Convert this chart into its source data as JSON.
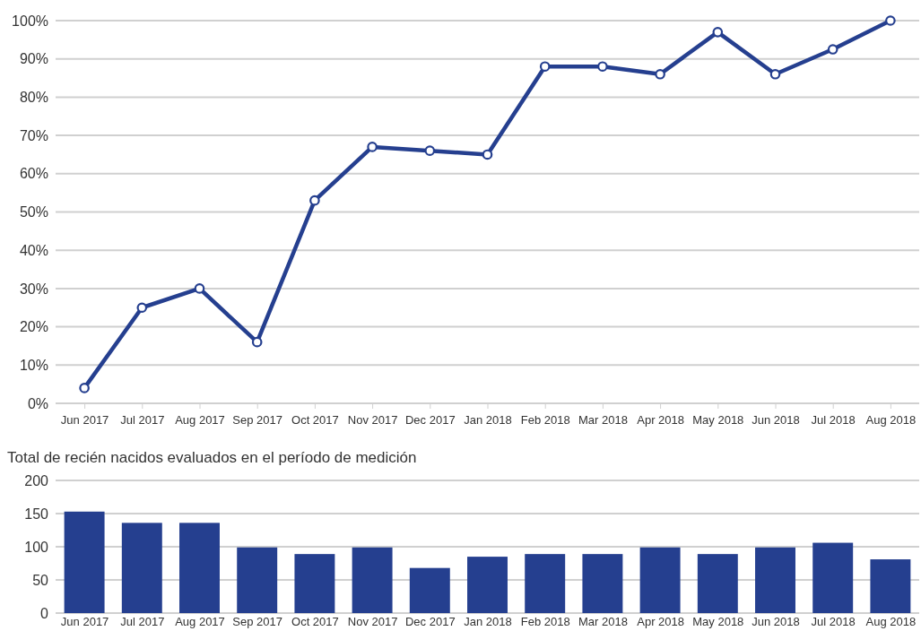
{
  "chart_data": [
    {
      "type": "line",
      "categories": [
        "Jun 2017",
        "Jul 2017",
        "Aug 2017",
        "Sep 2017",
        "Oct 2017",
        "Nov 2017",
        "Dec 2017",
        "Jan 2018",
        "Feb 2018",
        "Mar 2018",
        "Apr 2018",
        "May 2018",
        "Jun 2018",
        "Jul 2018",
        "Aug 2018"
      ],
      "series": [
        {
          "color": "#253f8f",
          "values": [
            4,
            25,
            30,
            16,
            53,
            67,
            66,
            65,
            88,
            88,
            86,
            97,
            86,
            92.5,
            100
          ]
        }
      ],
      "ylim": [
        0,
        100
      ],
      "yticks": [
        {
          "value": 0,
          "label": "0%"
        },
        {
          "value": 10,
          "label": "10%"
        },
        {
          "value": 20,
          "label": "20%"
        },
        {
          "value": 30,
          "label": "30%"
        },
        {
          "value": 40,
          "label": "40%"
        },
        {
          "value": 50,
          "label": "50%"
        },
        {
          "value": 60,
          "label": "60%"
        },
        {
          "value": 70,
          "label": "70%"
        },
        {
          "value": 80,
          "label": "80%"
        },
        {
          "value": 90,
          "label": "90%"
        },
        {
          "value": 100,
          "label": "100%"
        }
      ],
      "grid": "y",
      "marker": "circle",
      "line_style": "solid"
    },
    {
      "type": "bar",
      "title": "Total de recién nacidos evaluados en el período de medición",
      "categories": [
        "Jun 2017",
        "Jul 2017",
        "Aug 2017",
        "Sep 2017",
        "Oct 2017",
        "Nov 2017",
        "Dec 2017",
        "Jan 2018",
        "Feb 2018",
        "Mar 2018",
        "Apr 2018",
        "May 2018",
        "Jun 2018",
        "Jul 2018",
        "Aug 2018"
      ],
      "series": [
        {
          "color": "#253f8f",
          "values": [
            153,
            136,
            136,
            99,
            89,
            99,
            68,
            85,
            89,
            89,
            99,
            89,
            99,
            106,
            81
          ]
        }
      ],
      "ylim": [
        0,
        200
      ],
      "yticks": [
        0,
        50,
        100,
        150,
        200
      ],
      "grid": "y"
    }
  ]
}
